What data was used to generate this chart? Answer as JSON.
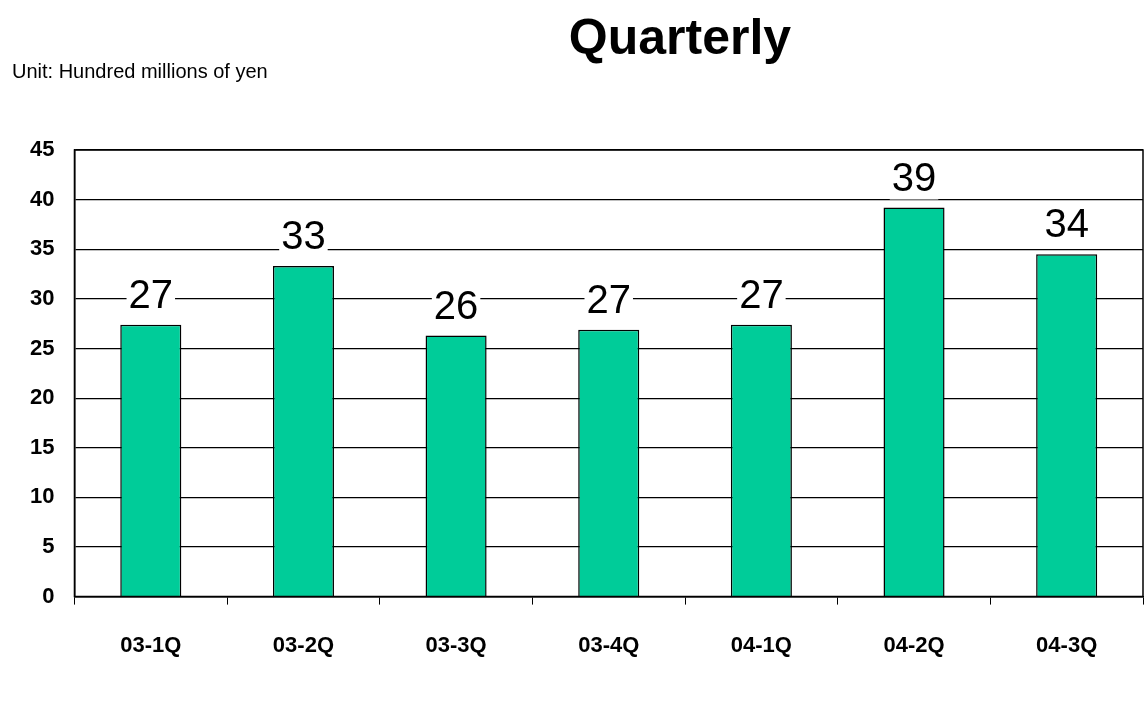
{
  "chart_data": {
    "type": "bar",
    "title": "Quarterly",
    "annotations": [
      "Unit: Hundred millions of yen"
    ],
    "categories": [
      "03-1Q",
      "03-2Q",
      "03-3Q",
      "03-4Q",
      "04-1Q",
      "04-2Q",
      "04-3Q"
    ],
    "values": [
      27.4,
      33.3,
      26.3,
      26.9,
      27.4,
      39.2,
      34.5
    ],
    "value_labels": [
      "27",
      "33",
      "26",
      "27",
      "27",
      "39",
      "34"
    ],
    "color": "#00cc99",
    "ylim": [
      0,
      45
    ],
    "yticks": [
      0,
      5,
      10,
      15,
      20,
      25,
      30,
      35,
      40,
      45
    ],
    "grid": "y",
    "legend": false
  }
}
